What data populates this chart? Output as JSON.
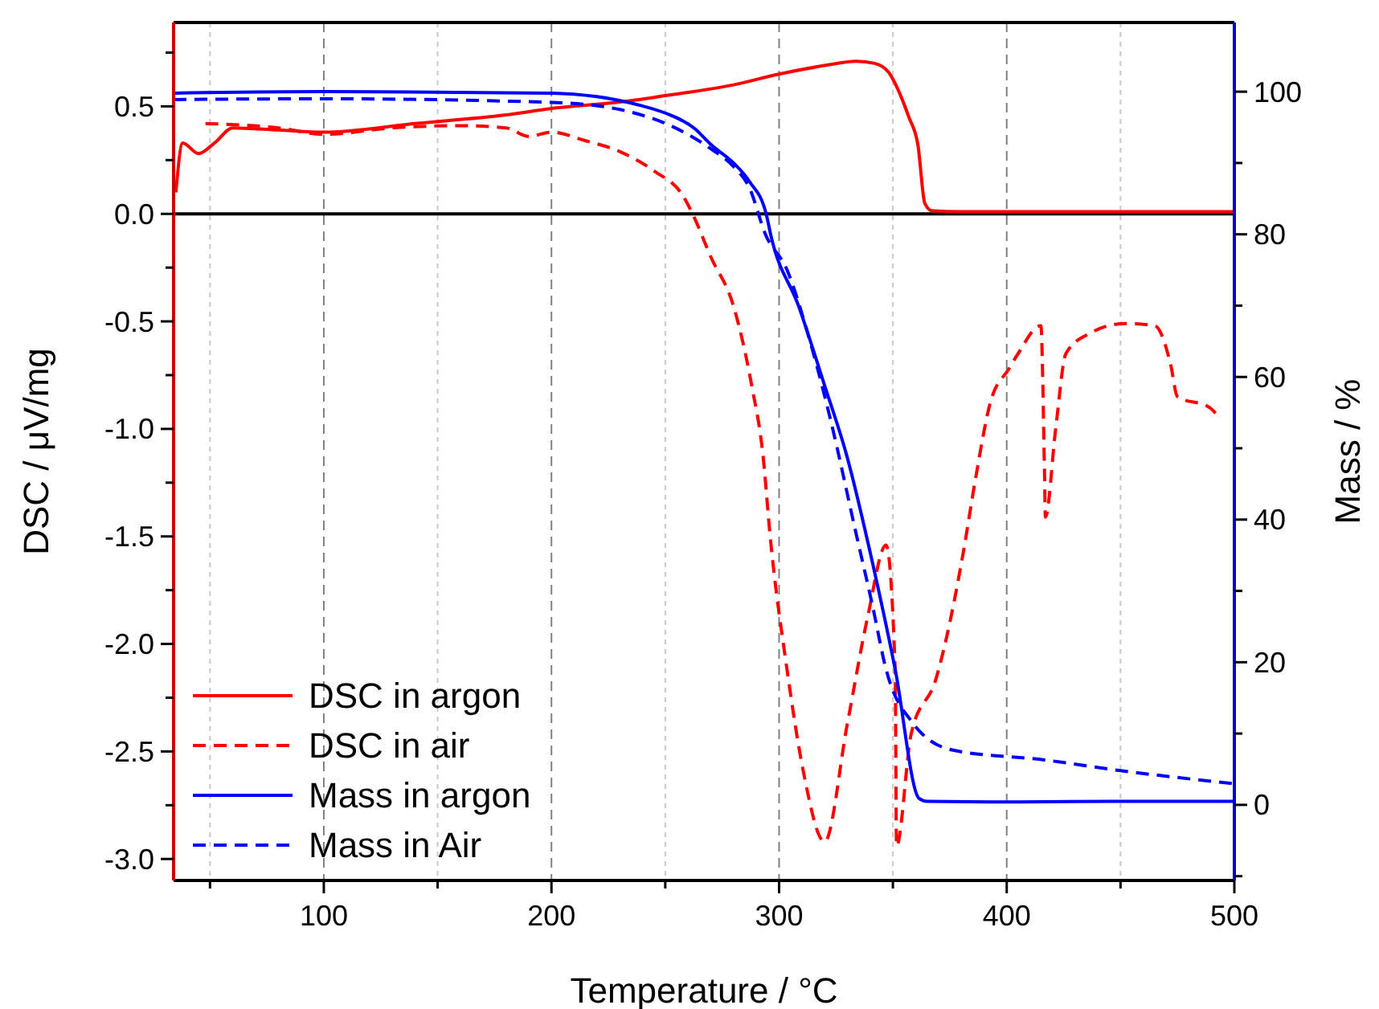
{
  "chart_data": {
    "type": "line",
    "xlabel": "Temperature / °C",
    "ylabel": "DSC / μV/mg",
    "y2label": "Mass / %",
    "xlim": [
      34,
      500
    ],
    "xticks": [
      {
        "value": 50,
        "label": null
      },
      100,
      {
        "value": 150,
        "label": null
      },
      200,
      {
        "value": 250,
        "label": null
      },
      300,
      {
        "value": 350,
        "label": null
      },
      400,
      {
        "value": 450,
        "label": null
      },
      500
    ],
    "ylim": [
      -3.1,
      0.89
    ],
    "yticks": [
      {
        "value": -3,
        "label": "-3.0"
      },
      {
        "value": -2.75,
        "label": null
      },
      -2.5,
      {
        "value": -2.25,
        "label": null
      },
      {
        "value": -2,
        "label": "-2.0"
      },
      {
        "value": -1.75,
        "label": null
      },
      -1.5,
      {
        "value": -1.25,
        "label": null
      },
      {
        "value": -1,
        "label": "-1.0"
      },
      {
        "value": -0.75,
        "label": null
      },
      -0.5,
      {
        "value": -0.25,
        "label": null
      },
      {
        "value": 0,
        "label": "0.0"
      },
      {
        "value": 0.25,
        "label": null
      },
      0.5,
      {
        "value": 0.75,
        "label": null
      }
    ],
    "y2lim": [
      -10.6,
      109.7
    ],
    "y2ticks": [
      {
        "value": -10,
        "label": null
      },
      0,
      {
        "value": 10,
        "label": null
      },
      20,
      {
        "value": 30,
        "label": null
      },
      40,
      {
        "value": 50,
        "label": null
      },
      60,
      {
        "value": 70,
        "label": null
      },
      80,
      {
        "value": 90,
        "label": null
      },
      100
    ],
    "grid": "x",
    "legend": "bottom left",
    "ref_lines": [
      {
        "axis": "y",
        "value": 0,
        "color": "#000000"
      }
    ],
    "series": [
      {
        "name": "DSC in argon",
        "color": "#ff0000",
        "line_style": "solid",
        "x": [
          35,
          38,
          45,
          52,
          60,
          80,
          100,
          140,
          180,
          200,
          230,
          250,
          280,
          300,
          320,
          334,
          342,
          348,
          353,
          357,
          361,
          364,
          367,
          380,
          450,
          500
        ],
        "values": [
          0.1,
          0.33,
          0.28,
          0.33,
          0.4,
          0.39,
          0.38,
          0.42,
          0.46,
          0.49,
          0.52,
          0.55,
          0.6,
          0.65,
          0.69,
          0.71,
          0.7,
          0.66,
          0.56,
          0.45,
          0.32,
          0.05,
          0.015,
          0.01,
          0.01,
          0.01
        ]
      },
      {
        "name": "DSC in air",
        "color": "#ff0000",
        "line_style": "dashed",
        "x": [
          48,
          80,
          100,
          130,
          160,
          180,
          190,
          200,
          215,
          230,
          245,
          258,
          262,
          270,
          280,
          288,
          293,
          296,
          303.5,
          310.6,
          320,
          330,
          339,
          347,
          351,
          351.6,
          358,
          369,
          381,
          386,
          393,
          401,
          405,
          415,
          416.6,
          417,
          421.5,
          426,
          435.7,
          452,
          465,
          472,
          475,
          489,
          492
        ],
        "values": [
          0.42,
          0.4,
          0.37,
          0.4,
          0.41,
          0.4,
          0.36,
          0.38,
          0.34,
          0.29,
          0.2,
          0.08,
          0,
          -0.2,
          -0.43,
          -0.8,
          -1.13,
          -1.49,
          -2.12,
          -2.59,
          -2.92,
          -2.37,
          -1.87,
          -1.54,
          -2.12,
          -2.94,
          -2.42,
          -2.16,
          -1.57,
          -1.25,
          -0.87,
          -0.72,
          -0.65,
          -0.52,
          -1.2,
          -1.41,
          -1.0,
          -0.65,
          -0.56,
          -0.51,
          -0.52,
          -0.7,
          -0.85,
          -0.9,
          -0.93
        ]
      },
      {
        "name": "Mass in argon",
        "color": "#0000ff",
        "line_style": "solid",
        "axis": "y2",
        "x": [
          34,
          100,
          200,
          220,
          240,
          250,
          263,
          270,
          280,
          287,
          294.3,
          296.5,
          308.5,
          320,
          329.7,
          341,
          351,
          361.5,
          365,
          400,
          450,
          500
        ],
        "values": [
          99.8,
          100,
          99.8,
          99.3,
          98,
          97,
          94.8,
          92.6,
          90,
          87.4,
          82.9,
          79.7,
          70,
          58.8,
          49,
          34,
          19,
          0.9,
          0.5,
          0.4,
          0.5,
          0.5
        ]
      },
      {
        "name": "Mass in Air",
        "color": "#0000ff",
        "line_style": "dashed",
        "axis": "y2",
        "x": [
          34,
          100,
          200,
          230,
          260,
          270,
          280,
          287,
          294,
          303.5,
          312.7,
          322.6,
          334,
          341,
          347,
          358.7,
          376,
          416.6,
          450,
          499
        ],
        "values": [
          98.9,
          99,
          98.5,
          97.5,
          94,
          92,
          89.5,
          86.5,
          80,
          75,
          66,
          54,
          37.8,
          28,
          19,
          11.5,
          7.7,
          6.3,
          4.8,
          3
        ]
      }
    ]
  }
}
